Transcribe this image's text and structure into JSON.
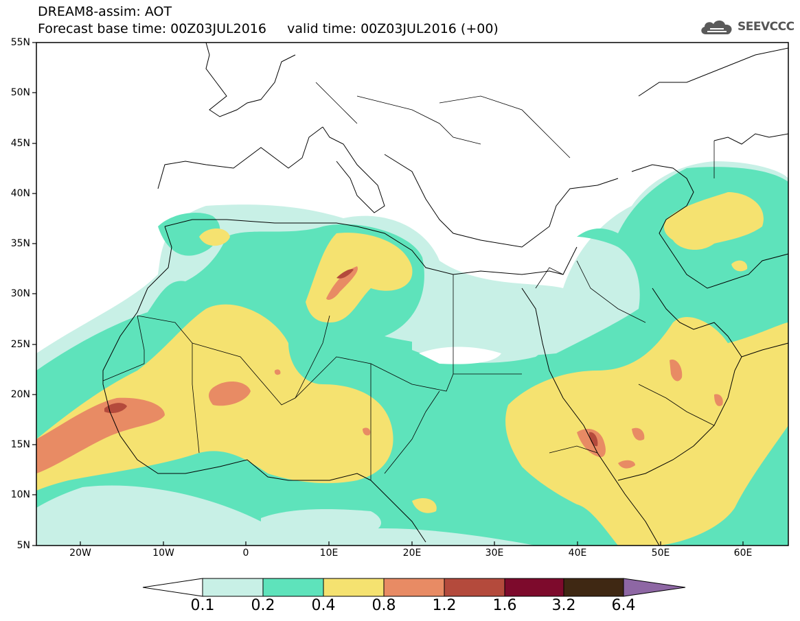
{
  "header": {
    "title_line1": "DREAM8-assim: AOT",
    "title_line2": "Forecast base time: 00Z03JUL2016     valid time: 00Z03JUL2016 (+00)",
    "logo_text": "SEEVCCC"
  },
  "map": {
    "lat_labels": [
      "55N",
      "50N",
      "45N",
      "40N",
      "35N",
      "30N",
      "25N",
      "20N",
      "15N",
      "10N",
      "5N"
    ],
    "lon_labels": [
      "20W",
      "10W",
      "0",
      "10E",
      "20E",
      "30E",
      "40E",
      "50E",
      "60E"
    ]
  },
  "colorbar": {
    "labels": [
      "0.1",
      "0.2",
      "0.4",
      "0.8",
      "1.2",
      "1.6",
      "3.2",
      "6.4"
    ],
    "colors": [
      "#ffffff",
      "#c8f0e6",
      "#5ee3bb",
      "#f5e270",
      "#e88b64",
      "#b44a3c",
      "#7d0a2c",
      "#3f2813",
      "#8e67a4"
    ]
  },
  "palette": {
    "level_0_1": "#c8f0e6",
    "level_0_2": "#5ee3bb",
    "level_0_4": "#f5e270",
    "level_0_8": "#e88b64",
    "level_1_2": "#b44a3c",
    "level_1_6": "#7d0a2c"
  }
}
